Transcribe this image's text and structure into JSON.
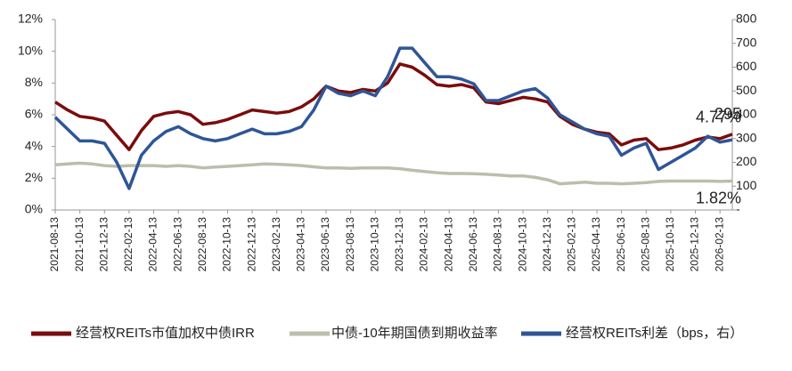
{
  "chart_data": {
    "type": "line",
    "categories": [
      "2021-08-13",
      null,
      "2021-10-13",
      null,
      "2021-12-13",
      null,
      "2022-02-13",
      null,
      "2022-04-13",
      null,
      "2022-06-13",
      null,
      "2022-08-13",
      null,
      "2022-10-13",
      null,
      "2022-12-13",
      null,
      "2023-02-13",
      null,
      "2023-04-13",
      null,
      "2023-06-13",
      null,
      "2023-08-13",
      null,
      "2023-10-13",
      null,
      "2023-12-13",
      null,
      "2024-02-13",
      null,
      "2024-04-13",
      null,
      "2024-06-13",
      null,
      "2024-08-13",
      null,
      "2024-10-13",
      null,
      "2024-12-13",
      null,
      "2025-02-13",
      null,
      "2025-04-13",
      null,
      "2025-06-13",
      null,
      "2025-08-13",
      null,
      "2025-10-13",
      null,
      "2025-12-13",
      null,
      "2026-02-13",
      null
    ],
    "series": [
      {
        "name": "经营权REITs市值加权中债IRR",
        "color": "#7b0c0c",
        "axis": "y",
        "values": [
          6.8,
          6.3,
          5.9,
          5.8,
          5.6,
          4.7,
          3.8,
          5.0,
          5.9,
          6.1,
          6.2,
          6.0,
          5.4,
          5.5,
          5.7,
          6.0,
          6.3,
          6.2,
          6.1,
          6.2,
          6.5,
          7.0,
          7.8,
          7.5,
          7.4,
          7.6,
          7.5,
          8.0,
          9.2,
          9.0,
          8.5,
          7.9,
          7.8,
          7.9,
          7.7,
          6.8,
          6.7,
          6.9,
          7.1,
          7.0,
          6.8,
          5.9,
          5.4,
          5.1,
          4.9,
          4.8,
          4.1,
          4.4,
          4.5,
          3.8,
          3.9,
          4.1,
          4.4,
          4.6,
          4.5,
          4.77
        ],
        "value_labels": [
          null,
          null,
          null,
          null,
          null,
          null,
          null,
          null,
          null,
          null,
          null,
          null,
          null,
          null,
          null,
          null,
          null,
          null,
          null,
          null,
          null,
          null,
          null,
          null,
          null,
          null,
          null,
          null,
          null,
          null,
          null,
          null,
          null,
          null,
          null,
          null,
          null,
          null,
          null,
          null,
          null,
          null,
          null,
          null,
          null,
          null,
          null,
          null,
          null,
          null,
          null,
          null,
          null,
          null,
          null,
          "4.77%"
        ]
      },
      {
        "name": "中债-10年期国债到期收益率",
        "color": "#bdbdae",
        "axis": "y",
        "values": [
          2.85,
          2.9,
          2.95,
          2.9,
          2.8,
          2.75,
          2.8,
          2.8,
          2.8,
          2.75,
          2.8,
          2.75,
          2.65,
          2.7,
          2.75,
          2.8,
          2.85,
          2.9,
          2.88,
          2.85,
          2.8,
          2.72,
          2.65,
          2.65,
          2.62,
          2.65,
          2.65,
          2.65,
          2.6,
          2.5,
          2.42,
          2.35,
          2.3,
          2.3,
          2.28,
          2.25,
          2.2,
          2.15,
          2.15,
          2.05,
          1.9,
          1.65,
          1.7,
          1.75,
          1.68,
          1.68,
          1.65,
          1.68,
          1.72,
          1.8,
          1.82,
          1.82,
          1.82,
          1.82,
          1.8,
          1.82
        ],
        "value_labels": [
          null,
          null,
          null,
          null,
          null,
          null,
          null,
          null,
          null,
          null,
          null,
          null,
          null,
          null,
          null,
          null,
          null,
          null,
          null,
          null,
          null,
          null,
          null,
          null,
          null,
          null,
          null,
          null,
          null,
          null,
          null,
          null,
          null,
          null,
          null,
          null,
          null,
          null,
          null,
          null,
          null,
          null,
          null,
          null,
          null,
          null,
          null,
          null,
          null,
          null,
          null,
          null,
          null,
          null,
          null,
          "1.82%"
        ]
      },
      {
        "name": "经营权REITs利差（bps，右）",
        "color": "#2f5597",
        "axis": "y2",
        "values": [
          390,
          340,
          290,
          290,
          280,
          200,
          90,
          230,
          290,
          330,
          350,
          320,
          300,
          290,
          300,
          320,
          340,
          320,
          320,
          330,
          350,
          420,
          520,
          490,
          480,
          500,
          480,
          560,
          680,
          680,
          620,
          560,
          560,
          550,
          530,
          460,
          460,
          480,
          500,
          510,
          470,
          400,
          370,
          340,
          320,
          310,
          230,
          260,
          280,
          170,
          200,
          230,
          260,
          310,
          285,
          295
        ]
      }
    ],
    "ylim": [
      0,
      12
    ],
    "yticks": [
      {
        "value": 0,
        "label": "0%"
      },
      {
        "value": 2,
        "label": "2%"
      },
      {
        "value": 4,
        "label": "4%"
      },
      {
        "value": 6,
        "label": "6%"
      },
      {
        "value": 8,
        "label": "8%"
      },
      {
        "value": 10,
        "label": "10%"
      },
      {
        "value": 12,
        "label": "12%"
      }
    ],
    "y2lim": [
      0,
      800
    ],
    "y2ticks": [
      {
        "value": 0,
        "label": "-"
      },
      100,
      200,
      300,
      400,
      500,
      600,
      700,
      800
    ],
    "legend": "bottom"
  }
}
